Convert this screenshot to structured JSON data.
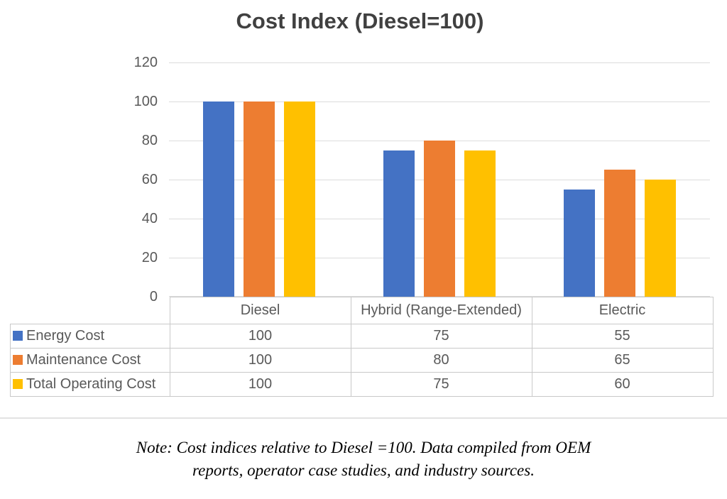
{
  "chart_data": {
    "type": "bar",
    "title": "Cost Index (Diesel=100)",
    "categories": [
      "Diesel",
      "Hybrid (Range-Extended)",
      "Electric"
    ],
    "series": [
      {
        "name": "Energy Cost",
        "color": "#4472C4",
        "values": [
          100,
          75,
          55
        ]
      },
      {
        "name": "Maintenance Cost",
        "color": "#ED7D31",
        "values": [
          100,
          80,
          65
        ]
      },
      {
        "name": "Total Operating Cost",
        "color": "#FFC000",
        "values": [
          100,
          75,
          60
        ]
      }
    ],
    "ylim": [
      0,
      120
    ],
    "yticks": [
      0,
      20,
      40,
      60,
      80,
      100,
      120
    ],
    "grid": true,
    "legend_position": "data-table-left",
    "data_table_shown": true
  },
  "note": {
    "line1": "Note: Cost indices relative to Diesel =100. Data compiled from OEM",
    "line2": "reports, operator case studies, and industry sources."
  },
  "colors": {
    "title_text": "#404040",
    "axis_text": "#595959",
    "grid": "#DCDCDC",
    "table_border": "#C9C9C9",
    "separator": "#E2E2E2"
  }
}
